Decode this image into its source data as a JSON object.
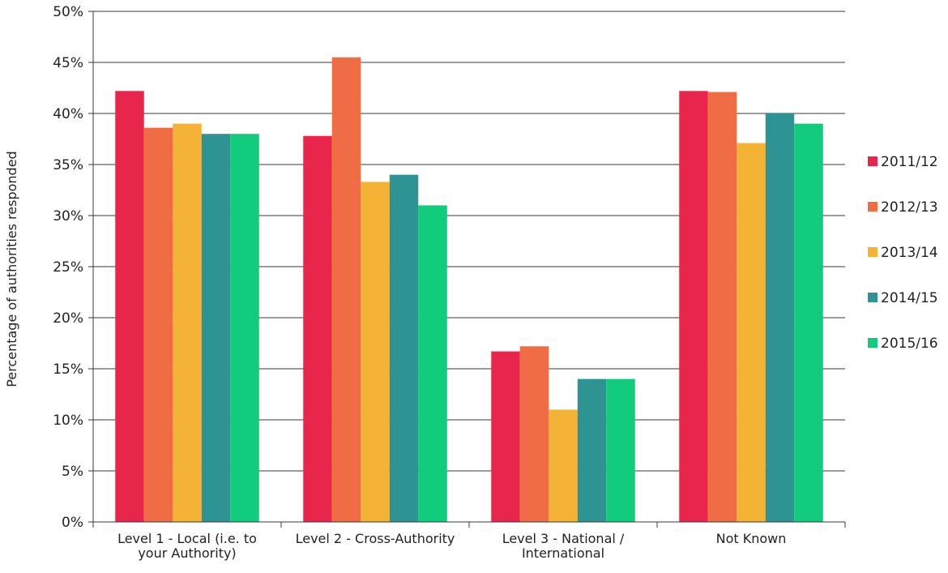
{
  "chart_data": {
    "type": "bar",
    "title": "",
    "xlabel": "",
    "ylabel": "Percentage of authorities responded",
    "ylim": [
      0,
      50
    ],
    "y_ticks": [
      "0%",
      "5%",
      "10%",
      "15%",
      "20%",
      "25%",
      "30%",
      "35%",
      "40%",
      "45%",
      "50%"
    ],
    "y_tick_values": [
      0,
      5,
      10,
      15,
      20,
      25,
      30,
      35,
      40,
      45,
      50
    ],
    "grid": true,
    "legend_position": "right",
    "categories": [
      [
        "Level 1 - Local (i.e. to",
        "your Authority)"
      ],
      [
        "Level 2 - Cross-Authority"
      ],
      [
        "Level 3 - National /",
        "International"
      ],
      [
        "Not Known"
      ]
    ],
    "series": [
      {
        "name": "2011/12",
        "color": "#e8264c",
        "values": [
          42.2,
          37.8,
          16.7,
          42.2
        ]
      },
      {
        "name": "2012/13",
        "color": "#f06c45",
        "values": [
          38.6,
          45.5,
          17.2,
          42.1
        ]
      },
      {
        "name": "2013/14",
        "color": "#f5b335",
        "values": [
          39.0,
          33.3,
          11.0,
          37.1
        ]
      },
      {
        "name": "2014/15",
        "color": "#2e9393",
        "values": [
          38.0,
          34.0,
          14.0,
          40.0
        ]
      },
      {
        "name": "2015/16",
        "color": "#12cc7e",
        "values": [
          38.0,
          31.0,
          14.0,
          39.0
        ]
      }
    ]
  }
}
